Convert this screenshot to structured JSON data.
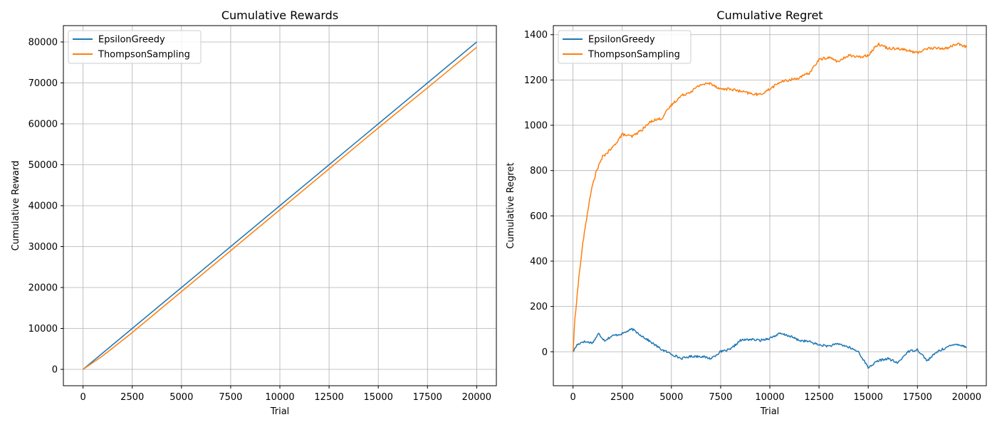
{
  "colors": {
    "series0": "#1f77b4",
    "series1": "#ff7f0e",
    "grid": "#b0b0b0"
  },
  "chart_data": [
    {
      "type": "line",
      "title": "Cumulative Rewards",
      "xlabel": "Trial",
      "ylabel": "Cumulative Reward",
      "xlim": [
        -1000,
        21000
      ],
      "ylim": [
        -4000,
        84000
      ],
      "xticks": [
        0,
        2500,
        5000,
        7500,
        10000,
        12500,
        15000,
        17500,
        20000
      ],
      "yticks": [
        0,
        10000,
        20000,
        30000,
        40000,
        50000,
        60000,
        70000,
        80000
      ],
      "grid": true,
      "legend_position": "top-left",
      "series": [
        {
          "name": "EpsilonGreedy",
          "x": [
            0,
            1000,
            2500,
            5000,
            7500,
            10000,
            12500,
            15000,
            17500,
            20000
          ],
          "values": [
            0,
            4000,
            10000,
            20000,
            30000,
            40000,
            50000,
            60000,
            70000,
            80000
          ]
        },
        {
          "name": "ThompsonSampling",
          "x": [
            0,
            1000,
            2500,
            5000,
            7500,
            10000,
            12500,
            15000,
            17500,
            20000
          ],
          "values": [
            0,
            3300,
            9000,
            19000,
            29000,
            39000,
            49000,
            59000,
            68800,
            78700
          ]
        }
      ]
    },
    {
      "type": "line",
      "title": "Cumulative Regret",
      "xlabel": "Trial",
      "ylabel": "Cumulative Regret",
      "xlim": [
        -1000,
        21000
      ],
      "ylim": [
        -150,
        1440
      ],
      "xticks": [
        0,
        2500,
        5000,
        7500,
        10000,
        12500,
        15000,
        17500,
        20000
      ],
      "yticks": [
        0,
        200,
        400,
        600,
        800,
        1000,
        1200,
        1400
      ],
      "grid": true,
      "legend_position": "top-left",
      "series": [
        {
          "name": "EpsilonGreedy",
          "x": [
            0,
            200,
            500,
            1000,
            1300,
            1600,
            2000,
            2500,
            3000,
            3500,
            4000,
            4500,
            5000,
            5500,
            6000,
            6500,
            7000,
            7500,
            8000,
            8500,
            9000,
            9500,
            10000,
            10500,
            11000,
            11500,
            12000,
            12500,
            13000,
            13500,
            14000,
            14500,
            15000,
            15500,
            16000,
            16500,
            17000,
            17500,
            18000,
            18500,
            19000,
            19500,
            20000
          ],
          "values": [
            0,
            30,
            45,
            40,
            80,
            50,
            70,
            80,
            100,
            70,
            40,
            10,
            -10,
            -30,
            -20,
            -20,
            -30,
            0,
            10,
            50,
            55,
            50,
            60,
            80,
            70,
            50,
            45,
            30,
            25,
            35,
            20,
            0,
            -70,
            -40,
            -30,
            -50,
            0,
            10,
            -40,
            0,
            20,
            35,
            20
          ]
        },
        {
          "name": "ThompsonSampling",
          "x": [
            0,
            100,
            300,
            500,
            800,
            1000,
            1200,
            1500,
            2000,
            2500,
            3000,
            3500,
            4000,
            4500,
            5000,
            5500,
            6000,
            6500,
            7000,
            7500,
            8000,
            8500,
            9000,
            9500,
            10000,
            10500,
            11000,
            11500,
            12000,
            12500,
            13000,
            13500,
            14000,
            14500,
            15000,
            15500,
            16000,
            16500,
            17000,
            17500,
            18000,
            18500,
            19000,
            19500,
            20000
          ],
          "values": [
            0,
            150,
            330,
            480,
            650,
            740,
            800,
            860,
            900,
            960,
            950,
            980,
            1020,
            1030,
            1090,
            1130,
            1150,
            1180,
            1185,
            1160,
            1160,
            1150,
            1140,
            1135,
            1160,
            1190,
            1200,
            1210,
            1230,
            1290,
            1300,
            1280,
            1310,
            1300,
            1310,
            1360,
            1340,
            1340,
            1330,
            1320,
            1340,
            1340,
            1340,
            1360,
            1345
          ]
        }
      ]
    }
  ]
}
